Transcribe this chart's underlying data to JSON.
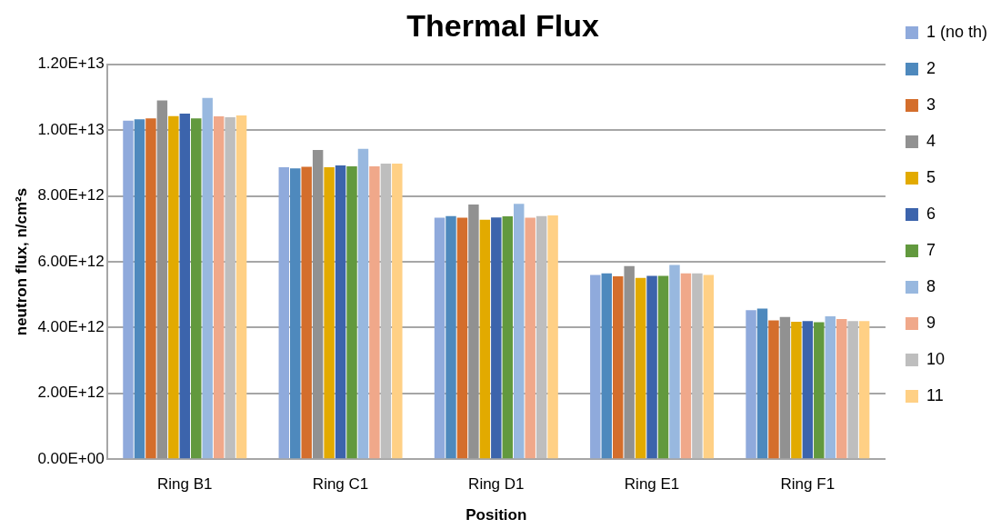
{
  "chart_data": {
    "type": "bar",
    "title": "Thermal Flux",
    "xlabel": "Position",
    "ylabel": "neutron flux, n/cm²s",
    "categories": [
      "Ring B1",
      "Ring C1",
      "Ring D1",
      "Ring E1",
      "Ring F1"
    ],
    "series": [
      {
        "name": "1 (no th)",
        "color": "#8faadc",
        "values": [
          10290000000000.0,
          8870000000000.0,
          7340000000000.0,
          5600000000000.0,
          4530000000000.0
        ]
      },
      {
        "name": "2",
        "color": "#4e89bd",
        "values": [
          10330000000000.0,
          8840000000000.0,
          7390000000000.0,
          5650000000000.0,
          4580000000000.0
        ]
      },
      {
        "name": "3",
        "color": "#d46e2c",
        "values": [
          10360000000000.0,
          8890000000000.0,
          7340000000000.0,
          5560000000000.0,
          4220000000000.0
        ]
      },
      {
        "name": "4",
        "color": "#919191",
        "values": [
          10900000000000.0,
          9400000000000.0,
          7740000000000.0,
          5870000000000.0,
          4320000000000.0
        ]
      },
      {
        "name": "5",
        "color": "#e2aa00",
        "values": [
          10430000000000.0,
          8870000000000.0,
          7280000000000.0,
          5510000000000.0,
          4180000000000.0
        ]
      },
      {
        "name": "6",
        "color": "#3c64ac",
        "values": [
          10500000000000.0,
          8930000000000.0,
          7350000000000.0,
          5570000000000.0,
          4200000000000.0
        ]
      },
      {
        "name": "7",
        "color": "#62993e",
        "values": [
          10360000000000.0,
          8900000000000.0,
          7380000000000.0,
          5570000000000.0,
          4160000000000.0
        ]
      },
      {
        "name": "8",
        "color": "#98b8df",
        "values": [
          10980000000000.0,
          9430000000000.0,
          7760000000000.0,
          5900000000000.0,
          4340000000000.0
        ]
      },
      {
        "name": "9",
        "color": "#f0a88a",
        "values": [
          10420000000000.0,
          8900000000000.0,
          7340000000000.0,
          5650000000000.0,
          4260000000000.0
        ]
      },
      {
        "name": "10",
        "color": "#bebebe",
        "values": [
          10390000000000.0,
          8980000000000.0,
          7390000000000.0,
          5650000000000.0,
          4200000000000.0
        ]
      },
      {
        "name": "11",
        "color": "#ffd085",
        "values": [
          10450000000000.0,
          8980000000000.0,
          7410000000000.0,
          5600000000000.0,
          4200000000000.0
        ]
      }
    ],
    "ylim": [
      0,
      12000000000000.0
    ],
    "yticks": [
      {
        "value": 0,
        "label": "0.00E+00"
      },
      {
        "value": 2000000000000.0,
        "label": "2.00E+12"
      },
      {
        "value": 4000000000000.0,
        "label": "4.00E+12"
      },
      {
        "value": 6000000000000.0,
        "label": "6.00E+12"
      },
      {
        "value": 8000000000000.0,
        "label": "8.00E+12"
      },
      {
        "value": 10000000000000.0,
        "label": "1.00E+13"
      },
      {
        "value": 12000000000000.0,
        "label": "1.20E+13"
      }
    ],
    "grid": "y",
    "legend": "right"
  }
}
